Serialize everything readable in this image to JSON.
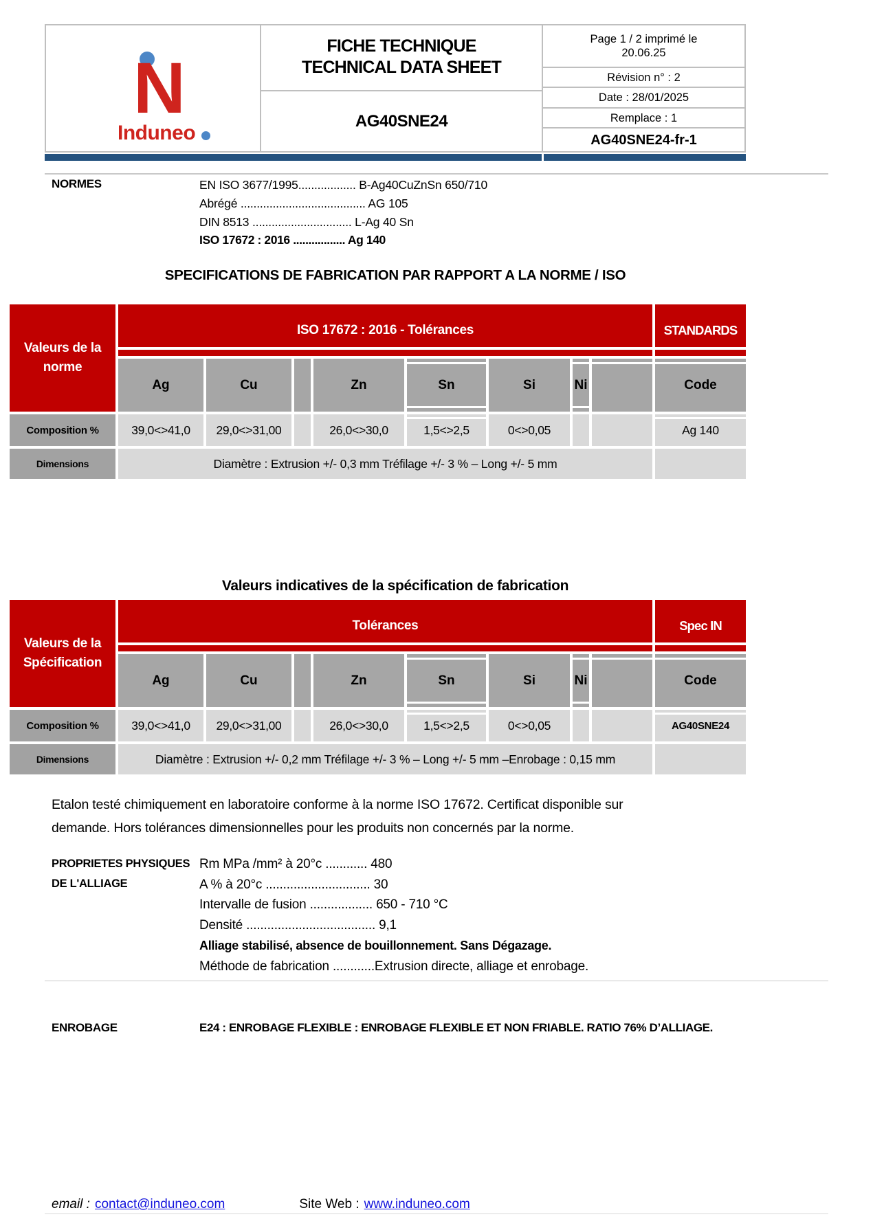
{
  "brand": {
    "name": "Induneo",
    "initial": "N"
  },
  "header": {
    "title_fr": "FICHE TECHNIQUE",
    "title_en": "TECHNICAL DATA SHEET",
    "product": "AG40SNE24",
    "page_line": "Page 1 / 2 imprimé le",
    "print_date": "20.06.25",
    "revision": "Révision n° : 2",
    "date": "Date : 28/01/2025",
    "replaces": "Remplace : 1",
    "doc_code": "AG40SNE24-fr-1"
  },
  "normes": {
    "label": "NORMES",
    "lines": [
      "EN ISO 3677/1995.................. B-Ag40CuZnSn 650/710",
      "Abrégé ....................................... AG 105",
      "DIN    8513 ............................... L-Ag 40 Sn",
      "ISO 17672 : 2016 ................. Ag 140"
    ]
  },
  "section1": {
    "title": "SPECIFICATIONS DE FABRICATION PAR RAPPORT A LA NORME / ISO",
    "table": {
      "row_header": "Valeurs de la norme",
      "band": "ISO 17672 : 2016 - Tolérances",
      "right_band": "STANDARDS",
      "elements": [
        "Ag",
        "Cu",
        "Zn",
        "Sn",
        "Si",
        "Ni"
      ],
      "code_header": "Code",
      "comp_label": "Composition  %",
      "comp_values": [
        "39,0<>41,0",
        "29,0<>31,00",
        "26,0<>30,0",
        "1,5<>2,5",
        "0<>0,05"
      ],
      "code_value": "Ag 140",
      "dim_label": "Dimensions",
      "dim_text": "Diamètre : Extrusion +/- 0,3 mm Tréfilage +/- 3 % – Long +/- 5 mm"
    }
  },
  "section2": {
    "title": "Valeurs indicatives de la spécification de fabrication",
    "table": {
      "row_header": "Valeurs de la Spécification",
      "band": "Tolérances",
      "right_band": "Spec IN",
      "elements": [
        "Ag",
        "Cu",
        "Zn",
        "Sn",
        "Si",
        "Ni"
      ],
      "code_header": "Code",
      "comp_label": "Composition  %",
      "comp_values": [
        "39,0<>41,0",
        "29,0<>31,00",
        "26,0<>30,0",
        "1,5<>2,5",
        "0<>0,05"
      ],
      "code_value": "AG40SNE24",
      "dim_label": "Dimensions",
      "dim_text": "Diamètre : Extrusion +/- 0,2 mm Tréfilage +/- 3 % – Long +/- 5 mm –Enrobage : 0,15 mm"
    }
  },
  "note_line1": "Etalon testé chimiquement en laboratoire conforme à la norme ISO 17672. Certificat disponible sur",
  "note_line2": "demande. Hors tolérances dimensionnelles pour les produits non concernés par la norme.",
  "properties": {
    "label_line1": "PROPRIETES PHYSIQUES",
    "label_line2": "DE L'ALLIAGE",
    "lines": [
      "Rm MPa /mm² à 20°c ............ 480",
      "A  % à 20°c .............................. 30",
      "Intervalle de fusion .................. 650 - 710 °C",
      "Densité ..................................... 9,1"
    ],
    "stabilized": "Alliage stabilisé, absence de bouillonnement. Sans Dégazage.",
    "method": "Méthode de fabrication ............Extrusion directe, alliage et enrobage."
  },
  "enrobage": {
    "label": "ENROBAGE",
    "text": "E24 : ENROBAGE FLEXIBLE : ENROBAGE FLEXIBLE ET NON FRIABLE. RATIO 76% D’ALLIAGE."
  },
  "footer": {
    "email_label": "email :",
    "email": "contact@induneo.com",
    "web_label": "Site Web :",
    "web": "www.induneo.com"
  },
  "colors": {
    "table_red": "#C00000",
    "header_gray": "#A6A6A6",
    "cell_gray": "#D9D9D9",
    "navy_bar": "#24527F",
    "logo_red": "#CF241E",
    "logo_blue": "#4D87C7",
    "link_blue": "#1414DD"
  }
}
